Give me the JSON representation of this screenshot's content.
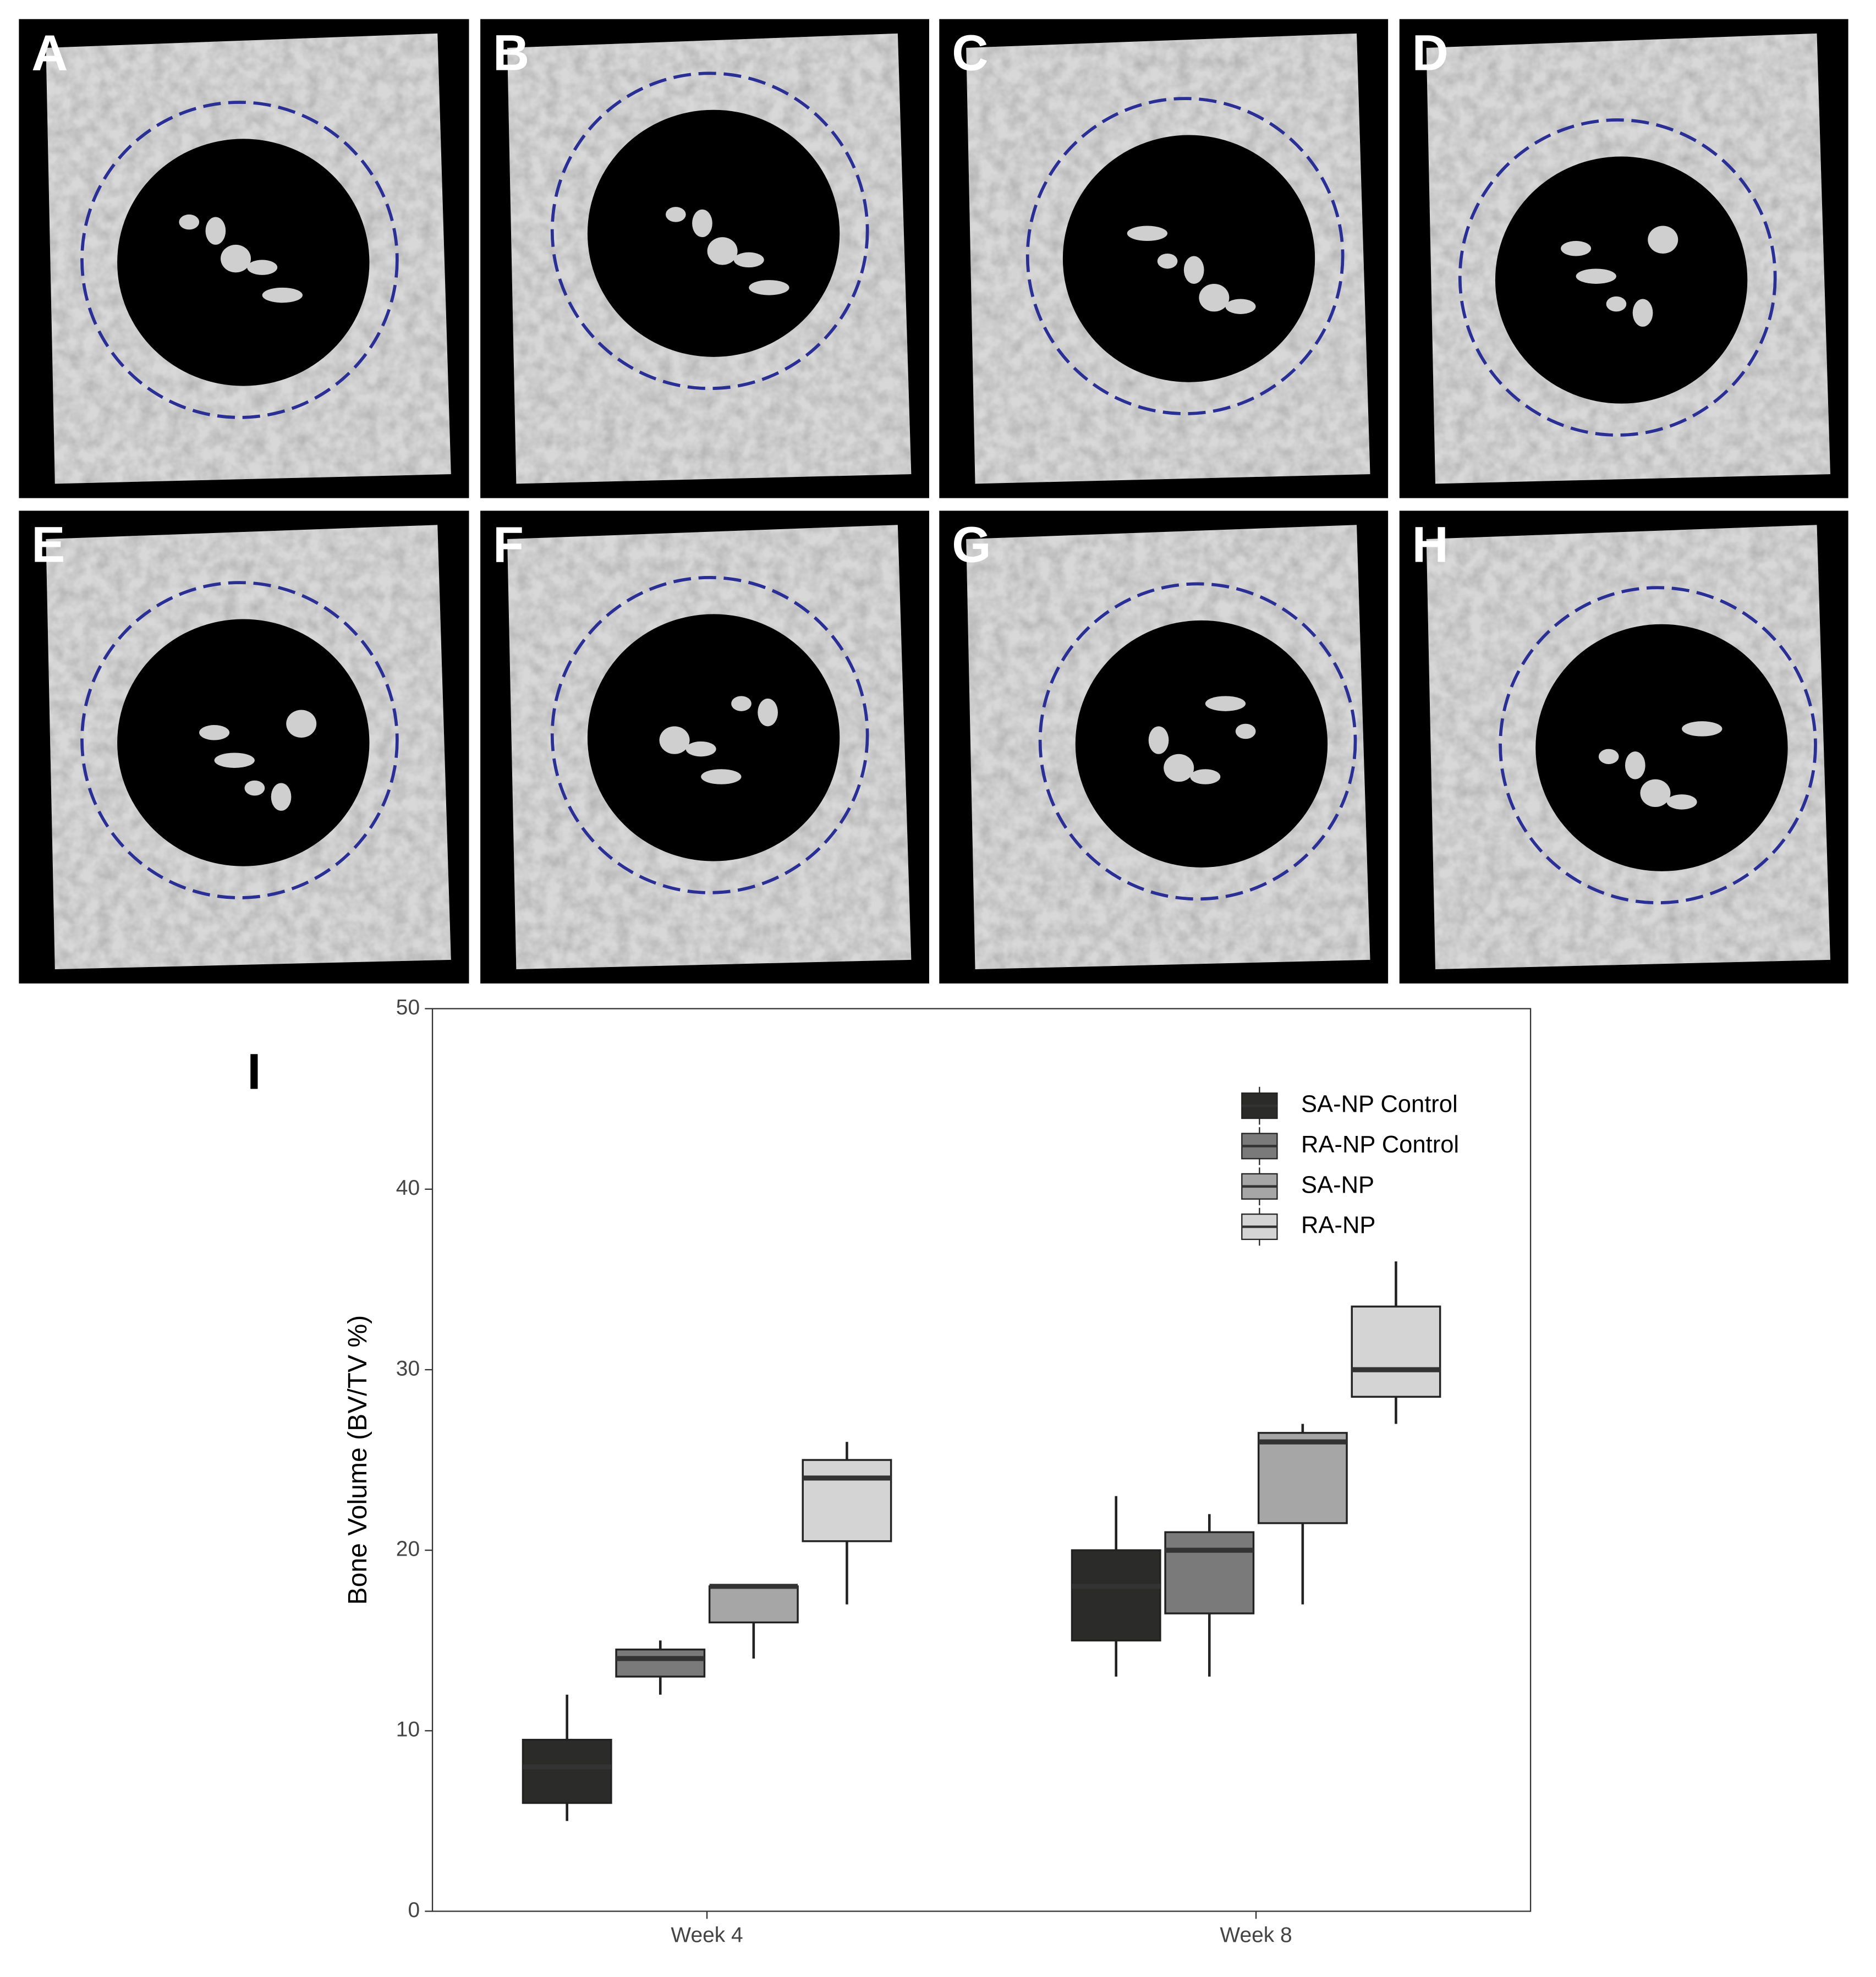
{
  "panels": [
    {
      "label": "A"
    },
    {
      "label": "B"
    },
    {
      "label": "C"
    },
    {
      "label": "D"
    },
    {
      "label": "E"
    },
    {
      "label": "F"
    },
    {
      "label": "G"
    },
    {
      "label": "H"
    }
  ],
  "chart_data": {
    "type": "boxplot",
    "panel_label": "I",
    "y_label": "Bone Volume (BV/TV %)",
    "categories": [
      "Week 4",
      "Week 8"
    ],
    "ylim": [
      0,
      50
    ],
    "yticks": [
      0,
      10,
      20,
      30,
      40,
      50
    ],
    "series": [
      {
        "name": "SA-NP Control",
        "color": "#2b2b29",
        "min": [
          5,
          13
        ],
        "q1": [
          6,
          15
        ],
        "median": [
          8,
          18
        ],
        "q3": [
          9.5,
          20
        ],
        "max": [
          12,
          23
        ]
      },
      {
        "name": "RA-NP Control",
        "color": "#7a7a7a",
        "min": [
          12,
          13
        ],
        "q1": [
          13,
          16.5
        ],
        "median": [
          14,
          20
        ],
        "q3": [
          14.5,
          21
        ],
        "max": [
          15,
          22
        ]
      },
      {
        "name": "SA-NP",
        "color": "#a6a6a6",
        "min": [
          14,
          17
        ],
        "q1": [
          16,
          21.5
        ],
        "median": [
          18,
          26
        ],
        "q3": [
          18,
          26.5
        ],
        "max": [
          18,
          27
        ]
      },
      {
        "name": "RA-NP",
        "color": "#d4d4d4",
        "min": [
          17,
          27
        ],
        "q1": [
          20.5,
          28.5
        ],
        "median": [
          24,
          30
        ],
        "q3": [
          25,
          33.5
        ],
        "max": [
          26,
          36
        ]
      }
    ]
  }
}
